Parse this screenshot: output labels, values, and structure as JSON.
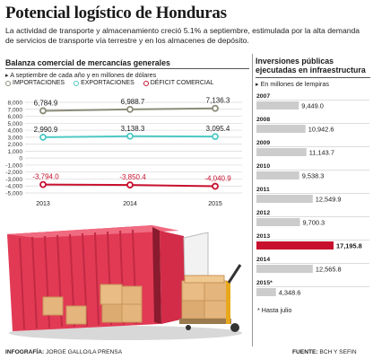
{
  "header": {
    "title": "Potencial logístico de Honduras",
    "subtitle": "La actividad de transporte y almacenamiento creció 5.1% a septiembre, estimulada por la alta demanda de servicios de transporte vía terrestre y en los almacenes de depósito."
  },
  "colors": {
    "importaciones": "#8c8c7a",
    "exportaciones": "#4fc9c4",
    "deficit": "#c8102e",
    "bar_2013": "#c8102e",
    "bar_default": "#cccccc"
  },
  "chart_data": [
    {
      "type": "line",
      "title": "Balanza comercial de mercancías generales",
      "note": "A septiembre de cada año y en millones de dólares",
      "categories": [
        "2013",
        "2014",
        "2015"
      ],
      "ylim": [
        -5000,
        8000
      ],
      "yticks": [
        "8,000",
        "7,000",
        "6,000",
        "5,000",
        "4,000",
        "3,000",
        "2,000",
        "1,000",
        "0",
        "-1,000",
        "-2,000",
        "-3,000",
        "-4,000",
        "-5,000"
      ],
      "legend_placement": "top",
      "series": [
        {
          "name": "IMPORTACIONES",
          "values": [
            6784.9,
            6988.7,
            7136.3
          ],
          "labels": [
            "6,784.9",
            "6,988.7",
            "7,136.3"
          ]
        },
        {
          "name": "EXPORTACIONES",
          "values": [
            2990.9,
            3138.3,
            3095.4
          ],
          "labels": [
            "2,990.9",
            "3,138.3",
            "3,095.4"
          ]
        },
        {
          "name": "DÉFICIT COMERCIAL",
          "values": [
            -3794.0,
            -3850.4,
            -4040.9
          ],
          "labels": [
            "-3,794.0",
            "-3,850.4",
            "-4,040.9"
          ]
        }
      ]
    },
    {
      "type": "bar",
      "title": "Inversiones públicas ejecutadas en infraestructura",
      "note": "En millones de lempiras",
      "categories": [
        "2007",
        "2008",
        "2009",
        "2010",
        "2011",
        "2012",
        "2013",
        "2014",
        "2015*"
      ],
      "values": [
        9449.0,
        10942.6,
        11143.7,
        9538.3,
        12549.9,
        9700.3,
        17195.8,
        12565.8,
        4348.6
      ],
      "labels": [
        "9,449.0",
        "10,942.6",
        "11,143.7",
        "9,538.3",
        "12,549.9",
        "9,700.3",
        "17,195.8",
        "12,565.8",
        "4,348.6"
      ],
      "highlight": "2013",
      "footnote": "* Hasta julio"
    }
  ],
  "footer": {
    "credit_label": "INFOGRAFÍA:",
    "credit_value": "JORGE GALLO/LA PRENSA",
    "source_label": "FUENTE:",
    "source_value": "BCH Y SEFIN"
  }
}
